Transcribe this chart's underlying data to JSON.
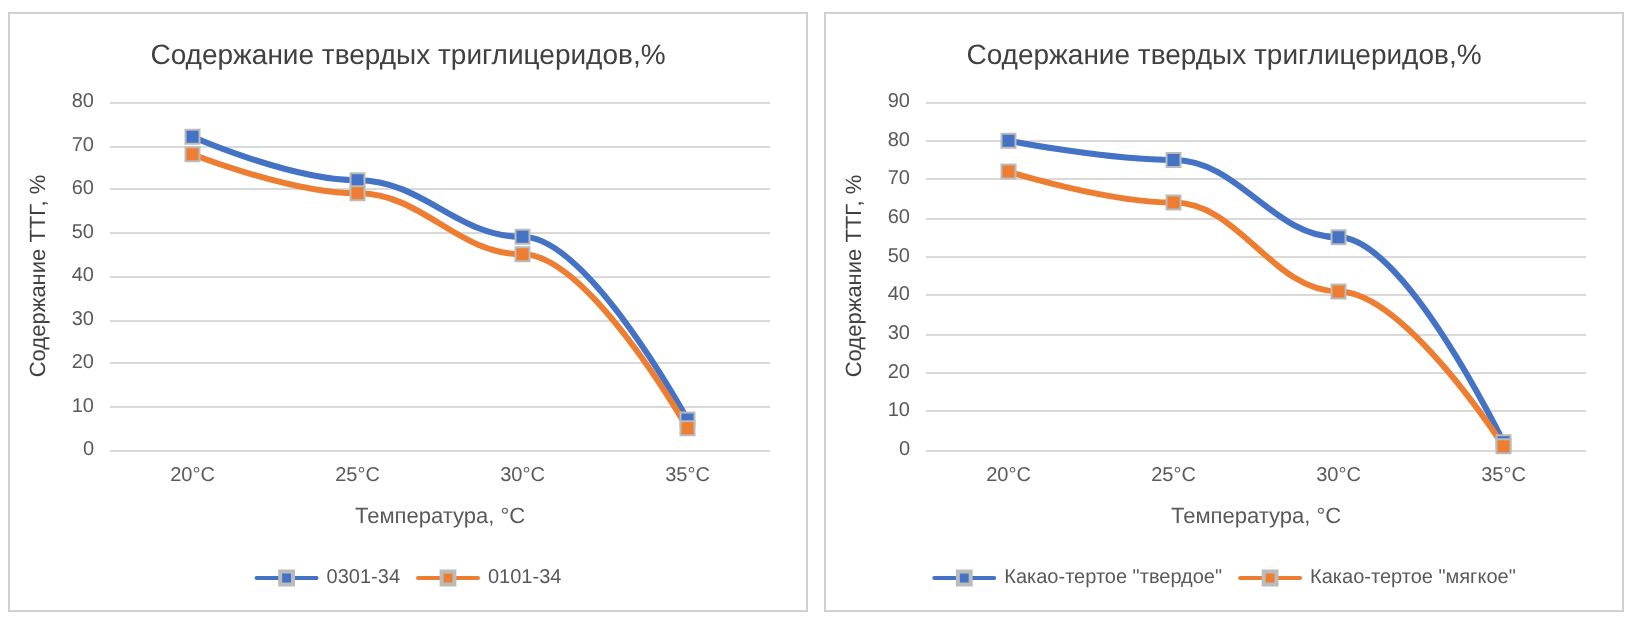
{
  "chart_data": [
    {
      "type": "line",
      "title": "Содержание твердых триглицеридов,%",
      "xlabel": "Температура, °C",
      "ylabel": "Содержание ТТГ, %",
      "categories": [
        "20°C",
        "25°C",
        "30°C",
        "35°C"
      ],
      "series": [
        {
          "name": "0301-34",
          "color": "#4472c4",
          "values": [
            72,
            62,
            49,
            7
          ]
        },
        {
          "name": "0101-34",
          "color": "#ed7d31",
          "values": [
            68,
            59,
            45,
            5
          ]
        }
      ],
      "ylim": [
        0,
        80
      ],
      "yticks": [
        0,
        10,
        20,
        30,
        40,
        50,
        60,
        70,
        80
      ],
      "grid": "y",
      "legend": "bottom",
      "marker": "square",
      "line_style": "solid"
    },
    {
      "type": "line",
      "title": "Содержание твердых триглицеридов,%",
      "xlabel": "Температура, °C",
      "ylabel": "Содержание ТТГ, %",
      "categories": [
        "20°C",
        "25°C",
        "30°C",
        "35°C"
      ],
      "series": [
        {
          "name": "Какао-тертое \"твердое\"",
          "color": "#4472c4",
          "values": [
            80,
            75,
            55,
            2
          ]
        },
        {
          "name": "Какао-тертое \"мягкое\"",
          "color": "#ed7d31",
          "values": [
            72,
            64,
            41,
            1
          ]
        }
      ],
      "ylim": [
        0,
        90
      ],
      "yticks": [
        0,
        10,
        20,
        30,
        40,
        50,
        60,
        70,
        80,
        90
      ],
      "grid": "y",
      "legend": "bottom",
      "marker": "square",
      "line_style": "solid"
    }
  ]
}
